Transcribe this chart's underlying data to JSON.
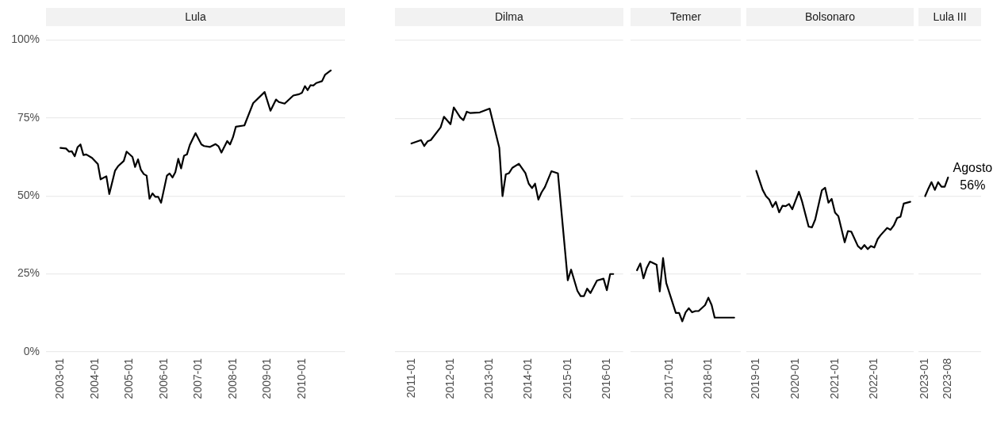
{
  "chart_data": [
    {
      "type": "line",
      "title": "Lula",
      "xlim": [
        "2002-08",
        "2011-04"
      ],
      "xticks": [
        "2003-01",
        "2004-01",
        "2005-01",
        "2006-01",
        "2007-01",
        "2008-01",
        "2009-01",
        "2010-01"
      ],
      "ylim": [
        0,
        100
      ],
      "yticks": [
        {
          "value": 0,
          "label": "0%"
        },
        {
          "value": 25,
          "label": "25%"
        },
        {
          "value": 50,
          "label": "50%"
        },
        {
          "value": 75,
          "label": "75%"
        },
        {
          "value": 100,
          "label": "100%"
        }
      ],
      "grid": "y",
      "legend": false,
      "series": [
        {
          "color": "#000000",
          "x": [
            "2003-01",
            "2003-03",
            "2003-04",
            "2003-05",
            "2003-06",
            "2003-07",
            "2003-08",
            "2003-09",
            "2003-10",
            "2003-12",
            "2004-02",
            "2004-03",
            "2004-05",
            "2004-06",
            "2004-08",
            "2004-09",
            "2004-11",
            "2004-12",
            "2005-02",
            "2005-03",
            "2005-04",
            "2005-05",
            "2005-06",
            "2005-07",
            "2005-08",
            "2005-09",
            "2005-10",
            "2005-11",
            "2005-12",
            "2006-02",
            "2006-03",
            "2006-04",
            "2006-05",
            "2006-06",
            "2006-07",
            "2006-08",
            "2006-09",
            "2006-10",
            "2006-12",
            "2007-02",
            "2007-03",
            "2007-05",
            "2007-07",
            "2007-08",
            "2007-09",
            "2007-11",
            "2007-12",
            "2008-01",
            "2008-02",
            "2008-05",
            "2008-08",
            "2008-12",
            "2009-02",
            "2009-04",
            "2009-05",
            "2009-07",
            "2009-10",
            "2009-12",
            "2010-01",
            "2010-02",
            "2010-03",
            "2010-04",
            "2010-05",
            "2010-06",
            "2010-08",
            "2010-09",
            "2010-11"
          ],
          "values": [
            65.4,
            65.2,
            64.2,
            64.3,
            62.7,
            65.6,
            66.5,
            63.1,
            63.3,
            62.2,
            60.2,
            55.3,
            56.3,
            50.6,
            58.1,
            59.5,
            61.2,
            64.2,
            62.5,
            59.3,
            61.7,
            58.4,
            57.0,
            56.5,
            49.1,
            50.8,
            49.7,
            49.7,
            47.8,
            56.5,
            57.2,
            55.9,
            57.6,
            61.9,
            58.8,
            62.9,
            63.3,
            66.3,
            70.1,
            66.5,
            66.0,
            65.7,
            66.6,
            65.9,
            63.9,
            67.6,
            66.5,
            68.8,
            72.2,
            72.6,
            79.7,
            83.3,
            77.3,
            80.9,
            80.1,
            79.6,
            82.2,
            82.6,
            83.1,
            85.2,
            83.9,
            85.5,
            85.4,
            86.2,
            86.8,
            88.8,
            90.2
          ]
        }
      ]
    },
    {
      "type": "line",
      "title": "Dilma",
      "xlim": [
        "2010-08",
        "2016-06"
      ],
      "xticks": [
        "2011-01",
        "2012-01",
        "2013-01",
        "2014-01",
        "2015-01",
        "2016-01"
      ],
      "ylim": [
        0,
        100
      ],
      "yticks": [
        0,
        25,
        50,
        75,
        100
      ],
      "grid": "y",
      "legend": false,
      "tick_labels": "x",
      "series": [
        {
          "color": "#000000",
          "x": [
            "2011-01",
            "2011-04",
            "2011-05",
            "2011-06",
            "2011-07",
            "2011-10",
            "2011-11",
            "2012-01",
            "2012-02",
            "2012-04",
            "2012-05",
            "2012-06",
            "2012-07",
            "2012-10",
            "2013-01",
            "2013-04",
            "2013-05",
            "2013-06",
            "2013-07",
            "2013-08",
            "2013-10",
            "2013-12",
            "2014-01",
            "2014-02",
            "2014-03",
            "2014-04",
            "2014-05",
            "2014-06",
            "2014-08",
            "2014-10",
            "2015-01",
            "2015-02",
            "2015-04",
            "2015-05",
            "2015-06",
            "2015-07",
            "2015-08",
            "2015-10",
            "2015-12",
            "2016-01",
            "2016-02",
            "2016-03"
          ],
          "values": [
            66.9,
            68.0,
            66.1,
            67.6,
            68.0,
            72.1,
            75.5,
            73.1,
            78.5,
            75.3,
            74.4,
            77.1,
            76.7,
            76.9,
            78.1,
            65.5,
            50.0,
            57.0,
            57.4,
            59.1,
            60.4,
            57.4,
            54.0,
            52.6,
            54.0,
            48.9,
            51.2,
            52.9,
            58.0,
            57.3,
            23.0,
            26.4,
            19.6,
            17.9,
            17.9,
            20.3,
            18.9,
            22.9,
            23.5,
            19.8,
            25.0,
            25.0
          ]
        }
      ]
    },
    {
      "type": "line",
      "title": "Temer",
      "xlim": [
        "2016-01",
        "2018-11"
      ],
      "xticks": [
        "2017-01",
        "2018-01"
      ],
      "ylim": [
        0,
        100
      ],
      "yticks": [
        0,
        25,
        50,
        75,
        100
      ],
      "grid": "y",
      "legend": false,
      "tick_labels": "x",
      "series": [
        {
          "color": "#000000",
          "x": [
            "2016-03",
            "2016-04",
            "2016-05",
            "2016-06",
            "2016-07",
            "2016-09",
            "2016-10",
            "2016-11",
            "2016-12",
            "2017-01",
            "2017-03",
            "2017-04",
            "2017-05",
            "2017-06",
            "2017-07",
            "2017-08",
            "2017-09",
            "2017-10",
            "2017-12",
            "2018-01",
            "2018-02",
            "2018-03",
            "2018-09"
          ],
          "values": [
            26.2,
            28.4,
            23.6,
            27.0,
            29.0,
            28.0,
            19.4,
            30.1,
            22.1,
            18.8,
            12.5,
            12.5,
            9.8,
            12.7,
            14.0,
            12.7,
            13.1,
            13.1,
            15.0,
            17.4,
            15.0,
            11.0,
            11.0
          ]
        }
      ]
    },
    {
      "type": "line",
      "title": "Bolsonaro",
      "xlim": [
        "2018-10",
        "2023-01"
      ],
      "xticks": [
        "2019-01",
        "2020-01",
        "2021-01",
        "2022-01"
      ],
      "ylim": [
        0,
        100
      ],
      "yticks": [
        0,
        25,
        50,
        75,
        100
      ],
      "grid": "y",
      "legend": false,
      "tick_labels": "x",
      "series": [
        {
          "color": "#000000",
          "x": [
            "2019-01",
            "2019-03",
            "2019-04",
            "2019-05",
            "2019-06",
            "2019-07",
            "2019-08",
            "2019-09",
            "2019-10",
            "2019-11",
            "2019-12",
            "2020-02",
            "2020-03",
            "2020-05",
            "2020-06",
            "2020-07",
            "2020-09",
            "2020-10",
            "2020-11",
            "2020-12",
            "2021-01",
            "2021-02",
            "2021-04",
            "2021-05",
            "2021-06",
            "2021-08",
            "2021-09",
            "2021-10",
            "2021-11",
            "2021-12",
            "2022-01",
            "2022-02",
            "2022-03",
            "2022-05",
            "2022-06",
            "2022-07",
            "2022-08",
            "2022-09",
            "2022-10",
            "2022-12"
          ],
          "values": [
            58.1,
            52.0,
            50.0,
            48.9,
            46.5,
            48.2,
            44.8,
            46.9,
            46.8,
            47.5,
            45.8,
            51.4,
            48.3,
            40.2,
            40.0,
            42.5,
            51.9,
            52.7,
            47.9,
            49.1,
            44.7,
            43.6,
            35.2,
            38.8,
            38.6,
            34.0,
            33.0,
            34.3,
            33.0,
            34.0,
            33.5,
            36.2,
            37.5,
            39.8,
            39.2,
            40.6,
            43.0,
            43.4,
            47.6,
            48.2
          ]
        }
      ]
    },
    {
      "type": "line",
      "title": "Lula III",
      "xlim": [
        "2022-11",
        "2024-06"
      ],
      "xticks": [
        "2023-01",
        "2023-08"
      ],
      "ylim": [
        0,
        100
      ],
      "yticks": [
        0,
        25,
        50,
        75,
        100
      ],
      "grid": "y",
      "legend": false,
      "tick_labels": "x",
      "annotations": [
        {
          "text": "Agosto\n56%",
          "x": "2023-08",
          "y": 56
        }
      ],
      "series": [
        {
          "color": "#000000",
          "x": [
            "2023-01",
            "2023-02",
            "2023-03",
            "2023-04",
            "2023-05",
            "2023-06",
            "2023-07",
            "2023-08"
          ],
          "values": [
            50.0,
            52.5,
            54.5,
            52.0,
            54.5,
            53.0,
            53.0,
            56.0
          ]
        }
      ]
    }
  ]
}
